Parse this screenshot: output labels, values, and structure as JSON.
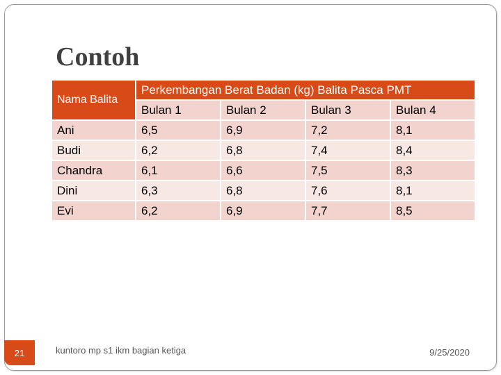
{
  "slide": {
    "title": "Contoh",
    "number": "21",
    "footer": "kuntoro mp s1 ikm bagian ketiga",
    "date": "9/25/2020"
  },
  "table": {
    "name_header": "Nama Balita",
    "group_header": "Perkembangan Berat Badan (kg) Balita Pasca PMT",
    "months": [
      "Bulan 1",
      "Bulan 2",
      "Bulan 3",
      "Bulan 4"
    ],
    "rows": [
      {
        "name": "Ani",
        "values": [
          "6,5",
          "6,9",
          "7,2",
          "8,1"
        ]
      },
      {
        "name": "Budi",
        "values": [
          "6,2",
          "6,8",
          "7,4",
          "8,4"
        ]
      },
      {
        "name": "Chandra",
        "values": [
          "6,1",
          "6,6",
          "7,5",
          "8,3"
        ]
      },
      {
        "name": "Dini",
        "values": [
          "6,3",
          "6,8",
          "7,6",
          "8,1"
        ]
      },
      {
        "name": "Evi",
        "values": [
          "6,2",
          "6,9",
          "7,7",
          "8,5"
        ]
      }
    ]
  },
  "colors": {
    "accent": "#d84a17",
    "row_dark": "#f2d3cd",
    "row_light": "#f8e8e4"
  }
}
